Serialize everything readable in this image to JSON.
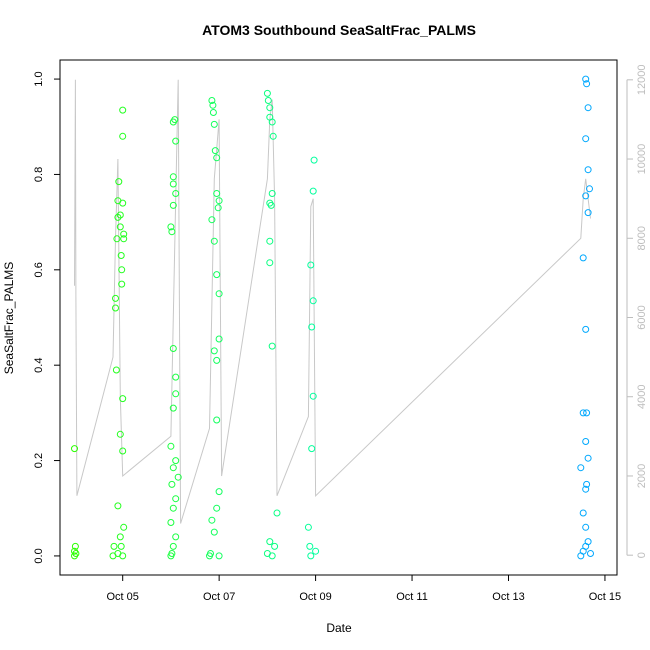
{
  "chart_data": {
    "type": "scatter",
    "title": "ATOM3 Southbound SeaSaltFrac_PALMS",
    "xlabel": "Date",
    "ylabel": "SeaSaltFrac_PALMS",
    "x_unit": "days",
    "x_ticks": [
      {
        "value": 5,
        "label": "Oct 05"
      },
      {
        "value": 7,
        "label": "Oct 07"
      },
      {
        "value": 9,
        "label": "Oct 09"
      },
      {
        "value": 11,
        "label": "Oct 11"
      },
      {
        "value": 13,
        "label": "Oct 13"
      },
      {
        "value": 15,
        "label": "Oct 15"
      }
    ],
    "xlim": [
      3.7,
      15.25
    ],
    "ylim": [
      -0.04,
      1.04
    ],
    "y_ticks": [
      0.0,
      0.2,
      0.4,
      0.6,
      0.8,
      1.0
    ],
    "y_tick_labels": [
      "0.0",
      "0.2",
      "0.4",
      "0.6",
      "0.8",
      "1.0"
    ],
    "y2lim": [
      -500,
      12500
    ],
    "y2_ticks": [
      0,
      2000,
      4000,
      6000,
      8000,
      10000,
      12000
    ],
    "y2_tick_labels": [
      "0",
      "2000",
      "4000",
      "6000",
      "8000",
      "10000",
      "12000"
    ],
    "grid": false,
    "legend": "none",
    "colors": {
      "altitude_line": "#c8c8c8",
      "right_axis": "#bdbdbd",
      "gradient_start": "#2bff00",
      "gradient_mid": "#00ffaa",
      "gradient_end": "#00a6ff"
    },
    "altitude_series": [
      [
        4.0,
        6800
      ],
      [
        4.02,
        12000
      ],
      [
        4.03,
        6500
      ],
      [
        4.05,
        1500
      ],
      [
        4.8,
        5000
      ],
      [
        4.85,
        8000
      ],
      [
        4.9,
        10000
      ],
      [
        4.95,
        4000
      ],
      [
        5.0,
        2000
      ],
      [
        6.0,
        3000
      ],
      [
        6.1,
        9000
      ],
      [
        6.15,
        12000
      ],
      [
        6.2,
        800
      ],
      [
        6.8,
        3200
      ],
      [
        6.9,
        9500
      ],
      [
        7.0,
        11000
      ],
      [
        7.05,
        2000
      ],
      [
        8.0,
        9500
      ],
      [
        8.05,
        11000
      ],
      [
        8.1,
        11500
      ],
      [
        8.15,
        9000
      ],
      [
        8.2,
        1500
      ],
      [
        8.85,
        3500
      ],
      [
        8.9,
        8800
      ],
      [
        8.95,
        9000
      ],
      [
        9.0,
        1500
      ],
      [
        14.5,
        8000
      ],
      [
        14.55,
        9000
      ],
      [
        14.6,
        9500
      ],
      [
        14.7,
        8500
      ]
    ],
    "points": [
      [
        4.0,
        0.225
      ],
      [
        4.0,
        0.0
      ],
      [
        4.0,
        0.01
      ],
      [
        4.02,
        0.02
      ],
      [
        4.03,
        0.005
      ],
      [
        4.8,
        0.0
      ],
      [
        4.82,
        0.02
      ],
      [
        4.85,
        0.54
      ],
      [
        4.85,
        0.52
      ],
      [
        4.87,
        0.39
      ],
      [
        4.88,
        0.665
      ],
      [
        4.9,
        0.71
      ],
      [
        4.9,
        0.745
      ],
      [
        4.92,
        0.785
      ],
      [
        4.95,
        0.715
      ],
      [
        4.95,
        0.69
      ],
      [
        4.97,
        0.63
      ],
      [
        4.98,
        0.6
      ],
      [
        4.98,
        0.57
      ],
      [
        5.0,
        0.935
      ],
      [
        5.0,
        0.88
      ],
      [
        5.0,
        0.74
      ],
      [
        5.02,
        0.675
      ],
      [
        5.02,
        0.665
      ],
      [
        5.0,
        0.33
      ],
      [
        4.95,
        0.255
      ],
      [
        5.0,
        0.22
      ],
      [
        4.9,
        0.105
      ],
      [
        5.02,
        0.06
      ],
      [
        4.95,
        0.04
      ],
      [
        4.97,
        0.02
      ],
      [
        5.0,
        0.0
      ],
      [
        4.9,
        0.005
      ],
      [
        6.0,
        0.0
      ],
      [
        6.02,
        0.005
      ],
      [
        6.05,
        0.91
      ],
      [
        6.08,
        0.915
      ],
      [
        6.1,
        0.87
      ],
      [
        6.05,
        0.795
      ],
      [
        6.05,
        0.78
      ],
      [
        6.1,
        0.76
      ],
      [
        6.05,
        0.735
      ],
      [
        6.0,
        0.69
      ],
      [
        6.02,
        0.68
      ],
      [
        6.05,
        0.435
      ],
      [
        6.1,
        0.375
      ],
      [
        6.1,
        0.34
      ],
      [
        6.05,
        0.31
      ],
      [
        6.0,
        0.23
      ],
      [
        6.1,
        0.2
      ],
      [
        6.05,
        0.185
      ],
      [
        6.15,
        0.165
      ],
      [
        6.02,
        0.15
      ],
      [
        6.1,
        0.12
      ],
      [
        6.05,
        0.1
      ],
      [
        6.0,
        0.07
      ],
      [
        6.1,
        0.04
      ],
      [
        6.05,
        0.02
      ],
      [
        6.8,
        0.0
      ],
      [
        6.82,
        0.005
      ],
      [
        6.85,
        0.955
      ],
      [
        6.87,
        0.945
      ],
      [
        6.88,
        0.93
      ],
      [
        6.9,
        0.905
      ],
      [
        6.92,
        0.85
      ],
      [
        6.95,
        0.835
      ],
      [
        6.85,
        0.705
      ],
      [
        6.9,
        0.66
      ],
      [
        6.95,
        0.76
      ],
      [
        7.0,
        0.745
      ],
      [
        6.98,
        0.73
      ],
      [
        6.95,
        0.59
      ],
      [
        7.0,
        0.55
      ],
      [
        6.9,
        0.43
      ],
      [
        6.95,
        0.41
      ],
      [
        7.0,
        0.455
      ],
      [
        6.95,
        0.285
      ],
      [
        7.0,
        0.135
      ],
      [
        6.95,
        0.1
      ],
      [
        6.85,
        0.075
      ],
      [
        6.9,
        0.05
      ],
      [
        7.0,
        0.0
      ],
      [
        8.0,
        0.97
      ],
      [
        8.02,
        0.955
      ],
      [
        8.05,
        0.94
      ],
      [
        8.05,
        0.92
      ],
      [
        8.1,
        0.91
      ],
      [
        8.12,
        0.88
      ],
      [
        8.05,
        0.74
      ],
      [
        8.08,
        0.735
      ],
      [
        8.1,
        0.76
      ],
      [
        8.05,
        0.66
      ],
      [
        8.05,
        0.615
      ],
      [
        8.1,
        0.44
      ],
      [
        8.2,
        0.09
      ],
      [
        8.05,
        0.03
      ],
      [
        8.15,
        0.02
      ],
      [
        8.1,
        0.0
      ],
      [
        8.0,
        0.005
      ],
      [
        8.85,
        0.06
      ],
      [
        8.88,
        0.02
      ],
      [
        8.9,
        0.61
      ],
      [
        8.95,
        0.535
      ],
      [
        8.92,
        0.48
      ],
      [
        8.95,
        0.765
      ],
      [
        8.97,
        0.83
      ],
      [
        8.95,
        0.335
      ],
      [
        8.92,
        0.225
      ],
      [
        9.0,
        0.01
      ],
      [
        8.9,
        0.0
      ],
      [
        14.5,
        0.185
      ],
      [
        14.55,
        0.625
      ],
      [
        14.6,
        1.0
      ],
      [
        14.62,
        0.99
      ],
      [
        14.65,
        0.94
      ],
      [
        14.6,
        0.875
      ],
      [
        14.65,
        0.81
      ],
      [
        14.68,
        0.77
      ],
      [
        14.6,
        0.755
      ],
      [
        14.65,
        0.72
      ],
      [
        14.6,
        0.475
      ],
      [
        14.62,
        0.3
      ],
      [
        14.55,
        0.3
      ],
      [
        14.6,
        0.24
      ],
      [
        14.65,
        0.205
      ],
      [
        14.62,
        0.15
      ],
      [
        14.6,
        0.14
      ],
      [
        14.55,
        0.09
      ],
      [
        14.6,
        0.06
      ],
      [
        14.65,
        0.03
      ],
      [
        14.6,
        0.02
      ],
      [
        14.55,
        0.01
      ],
      [
        14.5,
        0.0
      ],
      [
        14.7,
        0.005
      ]
    ]
  }
}
